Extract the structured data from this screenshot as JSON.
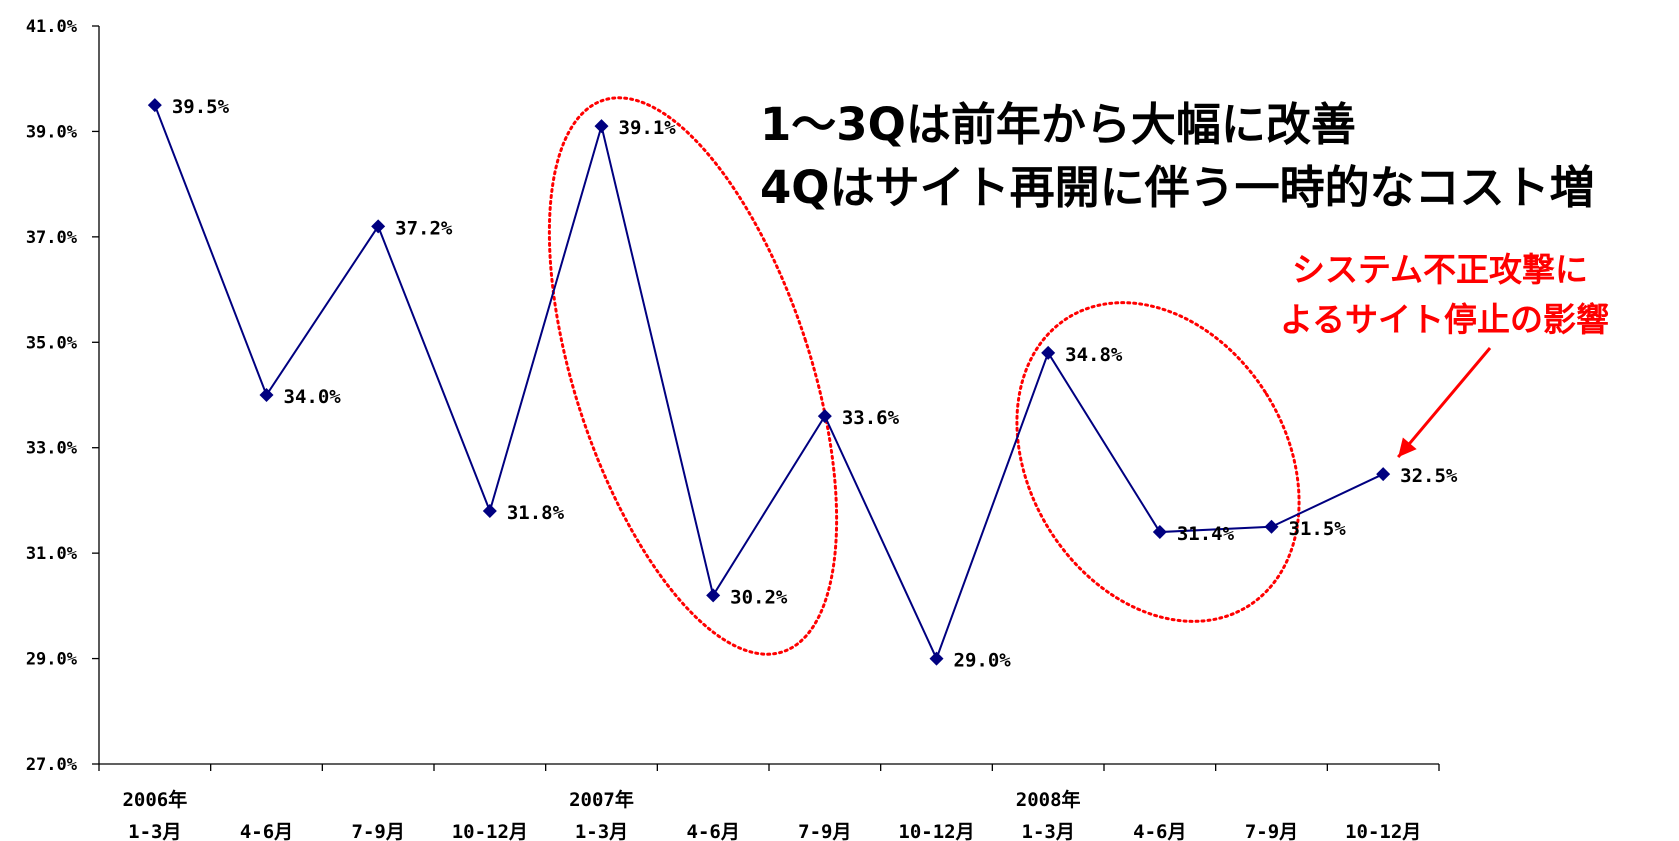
{
  "chart_data": {
    "type": "line",
    "categories": [
      "1-3月",
      "4-6月",
      "7-9月",
      "10-12月",
      "1-3月",
      "4-6月",
      "7-9月",
      "10-12月",
      "1-3月",
      "4-6月",
      "7-9月",
      "10-12月"
    ],
    "years": [
      {
        "label": "2006年",
        "index": 0
      },
      {
        "label": "2007年",
        "index": 4
      },
      {
        "label": "2008年",
        "index": 8
      }
    ],
    "series": [
      {
        "values": [
          39.5,
          34.0,
          37.2,
          31.8,
          39.1,
          30.2,
          33.6,
          29.0,
          34.8,
          31.4,
          31.5,
          32.5
        ],
        "color": "#000080"
      }
    ],
    "data_labels": [
      "39.5%",
      "34.0%",
      "37.2%",
      "31.8%",
      "39.1%",
      "30.2%",
      "33.6%",
      "29.0%",
      "34.8%",
      "31.4%",
      "31.5%",
      "32.5%"
    ],
    "ylim": [
      27.0,
      41.0
    ],
    "yticks": [
      27.0,
      29.0,
      31.0,
      33.0,
      35.0,
      37.0,
      39.0,
      41.0
    ],
    "ytick_labels": [
      "27.0%",
      "29.0%",
      "31.0%",
      "33.0%",
      "35.0%",
      "37.0%",
      "39.0%",
      "41.0%"
    ],
    "grid": false,
    "marker": "diamond",
    "highlight_color": "#ff0000"
  },
  "annotations": {
    "headline_line1": "1～3Qは前年から大幅に改善",
    "headline_line2": "4Qはサイト再開に伴う一時的なコスト増",
    "callout_line1": "システム不正攻撃に",
    "callout_line2": "よるサイト停止の影響",
    "callout_color": "#ff0000"
  }
}
